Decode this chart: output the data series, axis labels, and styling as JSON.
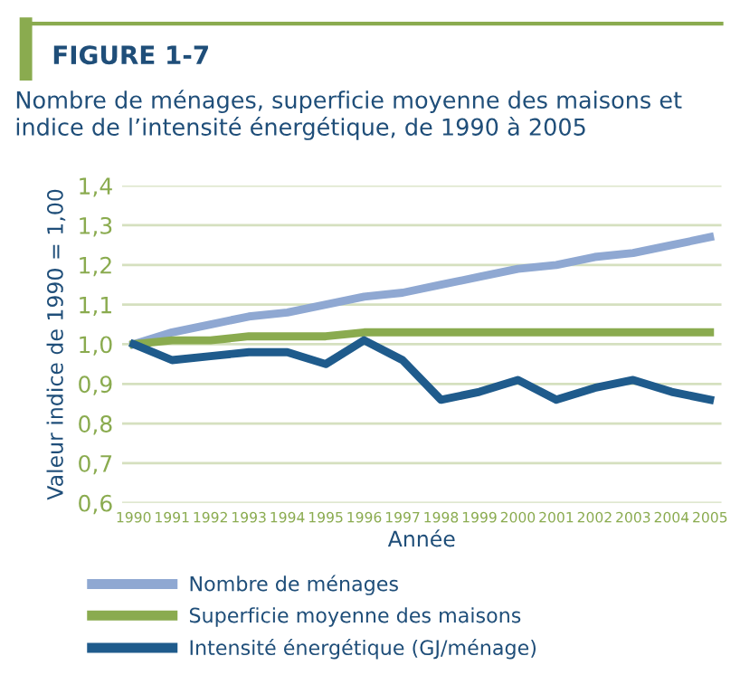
{
  "chart_data": {
    "type": "line",
    "title": "FIGURE 1-7",
    "subtitle": "Nombre de ménages, superficie moyenne des maisons et indice de l’intensité énergétique, de 1990 à 2005",
    "xlabel": "Année",
    "ylabel": "Valeur indice de 1990 = 1,00",
    "categories": [
      "1990",
      "1991",
      "1992",
      "1993",
      "1994",
      "1995",
      "1996",
      "1997",
      "1998",
      "1999",
      "2000",
      "2001",
      "2002",
      "2003",
      "2004",
      "2005"
    ],
    "series": [
      {
        "name": "Nombre de ménages",
        "color": "#8fa8d2",
        "values": [
          1.0,
          1.03,
          1.05,
          1.07,
          1.08,
          1.1,
          1.12,
          1.13,
          1.15,
          1.17,
          1.19,
          1.2,
          1.22,
          1.23,
          1.25,
          1.27
        ]
      },
      {
        "name": "Superficie moyenne des maisons",
        "color": "#8aab4f",
        "values": [
          1.0,
          1.01,
          1.01,
          1.02,
          1.02,
          1.02,
          1.03,
          1.03,
          1.03,
          1.03,
          1.03,
          1.03,
          1.03,
          1.03,
          1.03,
          1.03
        ]
      },
      {
        "name": "Intensité énergétique (GJ/ménage)",
        "color": "#1f5b8c",
        "values": [
          1.0,
          0.96,
          0.97,
          0.98,
          0.98,
          0.95,
          1.01,
          0.96,
          0.86,
          0.88,
          0.91,
          0.86,
          0.89,
          0.91,
          0.88,
          0.86
        ]
      }
    ],
    "ylim": [
      0.6,
      1.4
    ],
    "yticks": [
      {
        "value": 0.6,
        "label": "0,6"
      },
      {
        "value": 0.7,
        "label": "0,7"
      },
      {
        "value": 0.8,
        "label": "0,8"
      },
      {
        "value": 0.9,
        "label": "0,9"
      },
      {
        "value": 1.0,
        "label": "1,0"
      },
      {
        "value": 1.1,
        "label": "1,1"
      },
      {
        "value": 1.2,
        "label": "1,2"
      },
      {
        "value": 1.3,
        "label": "1,3"
      },
      {
        "value": 1.4,
        "label": "1,4"
      }
    ],
    "grid": "y",
    "legend": "bottom",
    "marker": "none",
    "line_style": "solid"
  }
}
